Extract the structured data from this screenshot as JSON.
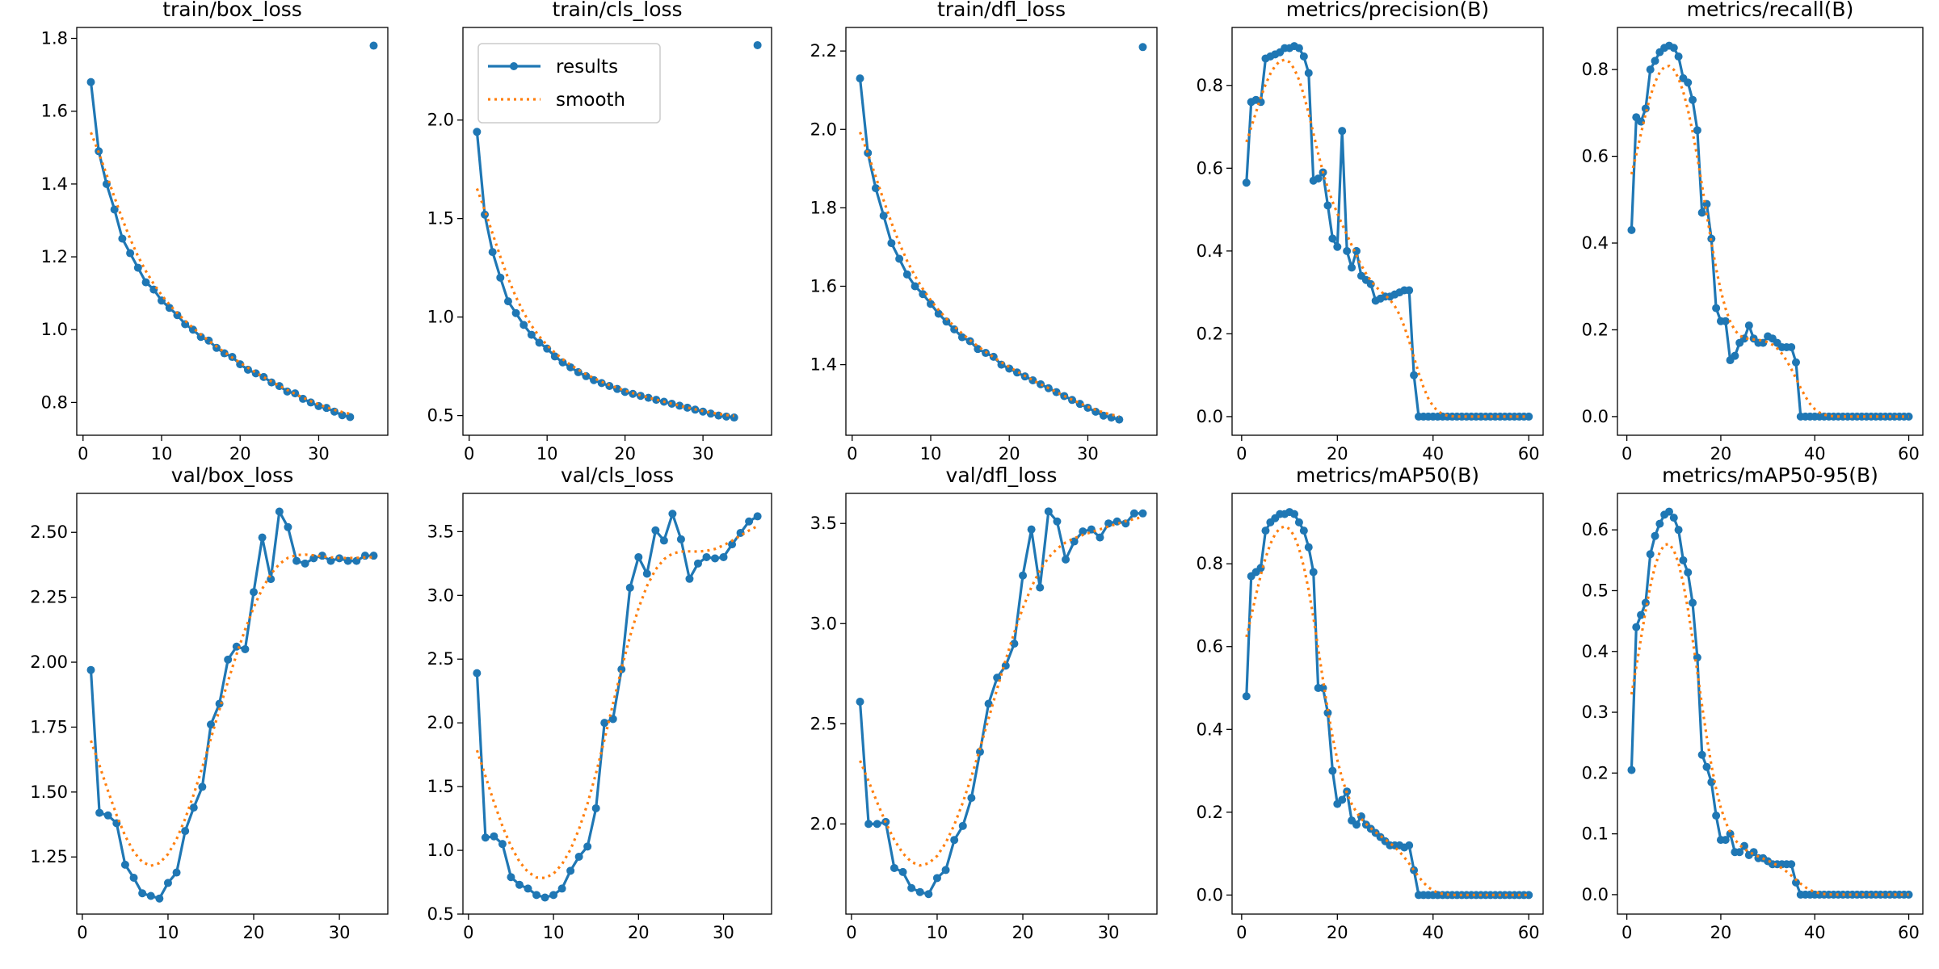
{
  "colors": {
    "results": "#1f77b4",
    "smooth": "#ff7f0e"
  },
  "legend": {
    "results": "results",
    "smooth": "smooth",
    "placement": "upper-left",
    "shown_in": 1
  },
  "chart_data": [
    {
      "type": "line",
      "title": "train/box_loss",
      "xlim": [
        -0.8,
        38.8
      ],
      "ylim": [
        0.71,
        1.83
      ],
      "xticks": [
        0,
        10,
        20,
        30
      ],
      "yticks": [
        0.8,
        1.0,
        1.2,
        1.4,
        1.6,
        1.8
      ],
      "ydec": 1,
      "series": [
        {
          "name": "results",
          "x_start": 1,
          "values": [
            1.68,
            1.49,
            1.4,
            1.33,
            1.25,
            1.21,
            1.17,
            1.13,
            1.11,
            1.08,
            1.06,
            1.04,
            1.015,
            1.0,
            0.98,
            0.97,
            0.95,
            0.935,
            0.925,
            0.905,
            0.89,
            0.88,
            0.87,
            0.855,
            0.845,
            0.83,
            0.825,
            0.81,
            0.8,
            0.79,
            0.785,
            0.775,
            0.765,
            0.76
          ]
        }
      ],
      "outliers": [
        [
          37,
          1.78
        ]
      ]
    },
    {
      "type": "line",
      "title": "train/cls_loss",
      "xlim": [
        -0.8,
        38.8
      ],
      "ylim": [
        0.4,
        2.47
      ],
      "xticks": [
        0,
        10,
        20,
        30
      ],
      "yticks": [
        0.5,
        1.0,
        1.5,
        2.0
      ],
      "ydec": 1,
      "series": [
        {
          "name": "results",
          "x_start": 1,
          "values": [
            1.94,
            1.52,
            1.33,
            1.2,
            1.08,
            1.02,
            0.96,
            0.91,
            0.87,
            0.84,
            0.8,
            0.77,
            0.745,
            0.72,
            0.7,
            0.68,
            0.665,
            0.65,
            0.635,
            0.62,
            0.61,
            0.6,
            0.59,
            0.58,
            0.57,
            0.56,
            0.55,
            0.54,
            0.53,
            0.52,
            0.51,
            0.5,
            0.495,
            0.49
          ]
        }
      ],
      "outliers": [
        [
          37,
          2.38
        ]
      ]
    },
    {
      "type": "line",
      "title": "train/dfl_loss",
      "xlim": [
        -0.8,
        38.8
      ],
      "ylim": [
        1.22,
        2.26
      ],
      "xticks": [
        0,
        10,
        20,
        30
      ],
      "yticks": [
        1.4,
        1.6,
        1.8,
        2.0,
        2.2
      ],
      "ydec": 1,
      "series": [
        {
          "name": "results",
          "x_start": 1,
          "values": [
            2.13,
            1.94,
            1.85,
            1.78,
            1.71,
            1.67,
            1.63,
            1.6,
            1.58,
            1.555,
            1.53,
            1.51,
            1.49,
            1.47,
            1.46,
            1.44,
            1.43,
            1.42,
            1.4,
            1.39,
            1.38,
            1.37,
            1.36,
            1.35,
            1.34,
            1.33,
            1.32,
            1.31,
            1.3,
            1.29,
            1.28,
            1.27,
            1.265,
            1.26
          ]
        }
      ],
      "outliers": [
        [
          37,
          2.21
        ]
      ]
    },
    {
      "type": "line",
      "title": "metrics/precision(B)",
      "xlim": [
        -2,
        63
      ],
      "ylim": [
        -0.045,
        0.94
      ],
      "xticks": [
        0,
        20,
        40,
        60
      ],
      "yticks": [
        0.0,
        0.2,
        0.4,
        0.6,
        0.8
      ],
      "ydec": 1,
      "series": [
        {
          "name": "results",
          "x_start": 1,
          "values": [
            0.565,
            0.76,
            0.765,
            0.76,
            0.865,
            0.87,
            0.875,
            0.88,
            0.89,
            0.89,
            0.895,
            0.89,
            0.87,
            0.83,
            0.57,
            0.575,
            0.59,
            0.51,
            0.43,
            0.41,
            0.69,
            0.4,
            0.36,
            0.4,
            0.34,
            0.33,
            0.32,
            0.28,
            0.285,
            0.29,
            0.29,
            0.295,
            0.3,
            0.305,
            0.305,
            0.1,
            0,
            0,
            0,
            0,
            0,
            0,
            0,
            0,
            0,
            0,
            0,
            0,
            0,
            0,
            0,
            0,
            0,
            0,
            0,
            0,
            0,
            0,
            0,
            0
          ]
        }
      ],
      "outliers": []
    },
    {
      "type": "line",
      "title": "metrics/recall(B)",
      "xlim": [
        -2,
        63
      ],
      "ylim": [
        -0.043,
        0.897
      ],
      "xticks": [
        0,
        20,
        40,
        60
      ],
      "yticks": [
        0.0,
        0.2,
        0.4,
        0.6,
        0.8
      ],
      "ydec": 1,
      "series": [
        {
          "name": "results",
          "x_start": 1,
          "values": [
            0.43,
            0.69,
            0.68,
            0.71,
            0.8,
            0.82,
            0.84,
            0.85,
            0.855,
            0.85,
            0.83,
            0.78,
            0.77,
            0.73,
            0.66,
            0.47,
            0.49,
            0.41,
            0.25,
            0.22,
            0.22,
            0.13,
            0.14,
            0.17,
            0.18,
            0.21,
            0.18,
            0.17,
            0.17,
            0.185,
            0.18,
            0.17,
            0.16,
            0.16,
            0.16,
            0.125,
            0,
            0,
            0,
            0,
            0,
            0,
            0,
            0,
            0,
            0,
            0,
            0,
            0,
            0,
            0,
            0,
            0,
            0,
            0,
            0,
            0,
            0,
            0,
            0
          ]
        }
      ],
      "outliers": []
    },
    {
      "type": "line",
      "title": "val/box_loss",
      "xlim": [
        -0.65,
        35.65
      ],
      "ylim": [
        1.03,
        2.65
      ],
      "xticks": [
        0,
        10,
        20,
        30
      ],
      "yticks": [
        1.25,
        1.5,
        1.75,
        2.0,
        2.25,
        2.5
      ],
      "ydec": 2,
      "series": [
        {
          "name": "results",
          "x_start": 1,
          "values": [
            1.97,
            1.42,
            1.41,
            1.38,
            1.22,
            1.17,
            1.11,
            1.1,
            1.09,
            1.15,
            1.19,
            1.35,
            1.44,
            1.52,
            1.76,
            1.84,
            2.01,
            2.06,
            2.05,
            2.27,
            2.48,
            2.32,
            2.58,
            2.52,
            2.39,
            2.38,
            2.4,
            2.41,
            2.39,
            2.4,
            2.39,
            2.39,
            2.41,
            2.41
          ]
        }
      ],
      "outliers": []
    },
    {
      "type": "line",
      "title": "val/cls_loss",
      "xlim": [
        -0.65,
        35.65
      ],
      "ylim": [
        0.5,
        3.8
      ],
      "xticks": [
        0,
        10,
        20,
        30
      ],
      "yticks": [
        0.5,
        1.0,
        1.5,
        2.0,
        2.5,
        3.0,
        3.5
      ],
      "ydec": 1,
      "series": [
        {
          "name": "results",
          "x_start": 1,
          "values": [
            2.39,
            1.1,
            1.11,
            1.05,
            0.79,
            0.73,
            0.7,
            0.65,
            0.63,
            0.65,
            0.7,
            0.84,
            0.95,
            1.03,
            1.33,
            2.0,
            2.03,
            2.42,
            3.06,
            3.3,
            3.17,
            3.51,
            3.43,
            3.64,
            3.44,
            3.13,
            3.25,
            3.3,
            3.29,
            3.3,
            3.4,
            3.49,
            3.58,
            3.62
          ]
        }
      ],
      "outliers": []
    },
    {
      "type": "line",
      "title": "val/dfl_loss",
      "xlim": [
        -0.65,
        35.65
      ],
      "ylim": [
        1.55,
        3.65
      ],
      "xticks": [
        0,
        10,
        20,
        30
      ],
      "yticks": [
        2.0,
        2.5,
        3.0,
        3.5
      ],
      "ydec": 1,
      "series": [
        {
          "name": "results",
          "x_start": 1,
          "values": [
            2.61,
            2.0,
            2.0,
            2.01,
            1.78,
            1.76,
            1.68,
            1.66,
            1.65,
            1.73,
            1.77,
            1.92,
            1.99,
            2.13,
            2.36,
            2.6,
            2.73,
            2.79,
            2.9,
            3.24,
            3.47,
            3.18,
            3.56,
            3.51,
            3.32,
            3.41,
            3.46,
            3.47,
            3.43,
            3.5,
            3.51,
            3.5,
            3.55,
            3.55
          ]
        }
      ],
      "outliers": []
    },
    {
      "type": "line",
      "title": "metrics/mAP50(B)",
      "xlim": [
        -2,
        63
      ],
      "ylim": [
        -0.046,
        0.97
      ],
      "xticks": [
        0,
        20,
        40,
        60
      ],
      "yticks": [
        0.0,
        0.2,
        0.4,
        0.6,
        0.8
      ],
      "ydec": 1,
      "series": [
        {
          "name": "results",
          "x_start": 1,
          "values": [
            0.48,
            0.77,
            0.78,
            0.79,
            0.88,
            0.9,
            0.91,
            0.92,
            0.92,
            0.925,
            0.92,
            0.9,
            0.88,
            0.84,
            0.78,
            0.5,
            0.5,
            0.44,
            0.3,
            0.22,
            0.23,
            0.25,
            0.18,
            0.17,
            0.19,
            0.17,
            0.16,
            0.15,
            0.14,
            0.13,
            0.12,
            0.12,
            0.12,
            0.115,
            0.12,
            0.06,
            0,
            0,
            0,
            0,
            0,
            0,
            0,
            0,
            0,
            0,
            0,
            0,
            0,
            0,
            0,
            0,
            0,
            0,
            0,
            0,
            0,
            0,
            0,
            0
          ]
        }
      ],
      "outliers": []
    },
    {
      "type": "line",
      "title": "metrics/mAP50-95(B)",
      "xlim": [
        -2,
        63
      ],
      "ylim": [
        -0.032,
        0.66
      ],
      "xticks": [
        0,
        20,
        40,
        60
      ],
      "yticks": [
        0.0,
        0.1,
        0.2,
        0.3,
        0.4,
        0.5,
        0.6
      ],
      "ydec": 1,
      "series": [
        {
          "name": "results",
          "x_start": 1,
          "values": [
            0.205,
            0.44,
            0.46,
            0.48,
            0.56,
            0.59,
            0.61,
            0.625,
            0.63,
            0.62,
            0.6,
            0.55,
            0.53,
            0.48,
            0.39,
            0.23,
            0.21,
            0.185,
            0.13,
            0.09,
            0.09,
            0.1,
            0.07,
            0.07,
            0.08,
            0.065,
            0.07,
            0.06,
            0.06,
            0.055,
            0.05,
            0.05,
            0.05,
            0.05,
            0.05,
            0.02,
            0,
            0,
            0,
            0,
            0,
            0,
            0,
            0,
            0,
            0,
            0,
            0,
            0,
            0,
            0,
            0,
            0,
            0,
            0,
            0,
            0,
            0,
            0,
            0
          ]
        }
      ],
      "outliers": []
    }
  ]
}
